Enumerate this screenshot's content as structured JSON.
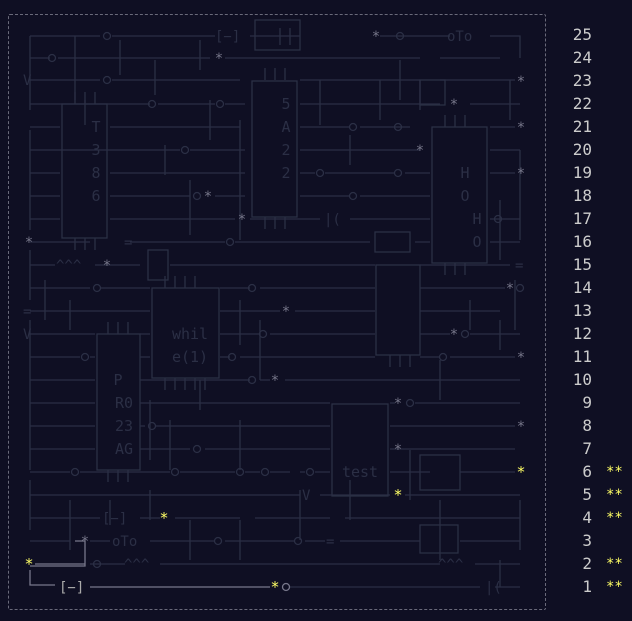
{
  "calendar": {
    "days": [
      {
        "day": "25",
        "stars": ""
      },
      {
        "day": "24",
        "stars": ""
      },
      {
        "day": "23",
        "stars": ""
      },
      {
        "day": "22",
        "stars": ""
      },
      {
        "day": "21",
        "stars": ""
      },
      {
        "day": "20",
        "stars": ""
      },
      {
        "day": "19",
        "stars": ""
      },
      {
        "day": "18",
        "stars": ""
      },
      {
        "day": "17",
        "stars": ""
      },
      {
        "day": "16",
        "stars": ""
      },
      {
        "day": "15",
        "stars": ""
      },
      {
        "day": "14",
        "stars": ""
      },
      {
        "day": "13",
        "stars": ""
      },
      {
        "day": "12",
        "stars": ""
      },
      {
        "day": "11",
        "stars": ""
      },
      {
        "day": "10",
        "stars": ""
      },
      {
        "day": "9",
        "stars": ""
      },
      {
        "day": "8",
        "stars": ""
      },
      {
        "day": "7",
        "stars": ""
      },
      {
        "day": "6",
        "stars": "**"
      },
      {
        "day": "5",
        "stars": "**"
      },
      {
        "day": "4",
        "stars": "**"
      },
      {
        "day": "3",
        "stars": ""
      },
      {
        "day": "2",
        "stars": "**"
      },
      {
        "day": "1",
        "stars": "**"
      }
    ]
  },
  "art": {
    "chip_a": [
      "T",
      "3",
      "8",
      "6"
    ],
    "chip_b": [
      "5",
      "A",
      "2",
      "2"
    ],
    "chip_c": [
      "H",
      "O",
      "H",
      "O"
    ],
    "chip_d": [
      "whil",
      "e(1)"
    ],
    "chip_e": [
      "P",
      "R0",
      "23",
      "AG"
    ],
    "chip_f": "test",
    "bracket": "[−]",
    "squiggle": "^^^",
    "ot": "oTo",
    "star": "*",
    "v": "V",
    "eq": "=",
    "paren": "|("
  },
  "colors": {
    "background": "#0f0f23",
    "gold": "#ffff66",
    "wire_dim": "#2b2f45",
    "wire_lit": "#77778a",
    "text": "#cccccc"
  }
}
